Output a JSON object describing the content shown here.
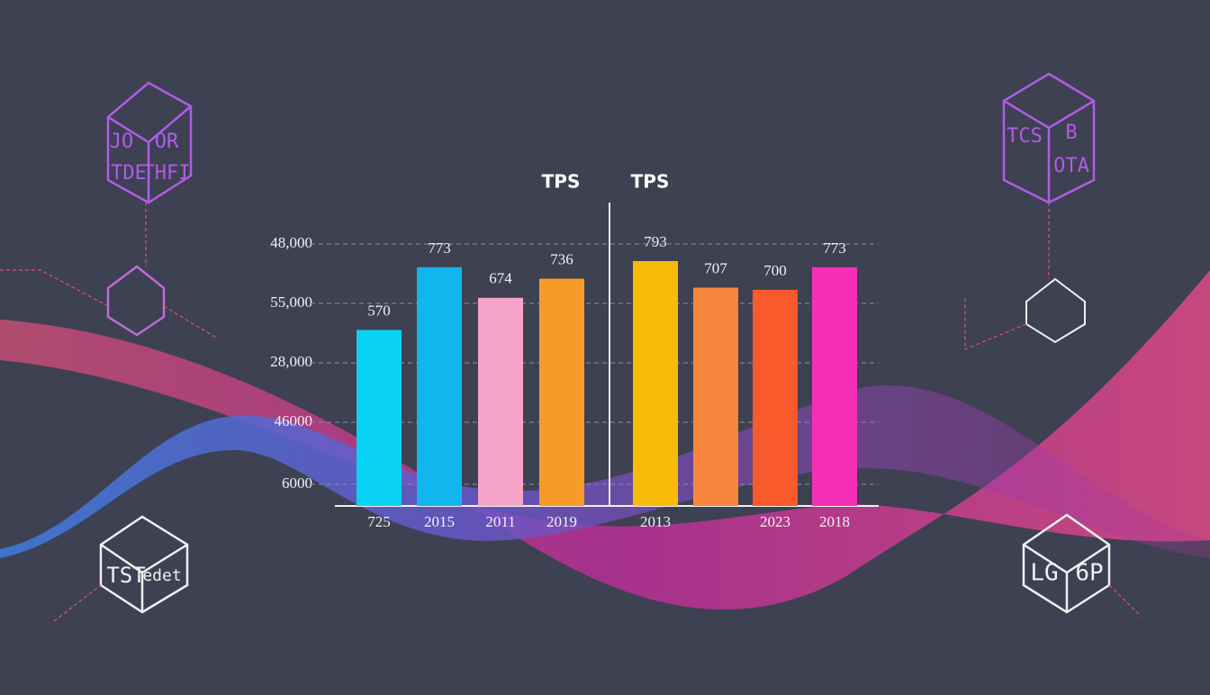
{
  "chart_data": [
    {
      "type": "bar",
      "title": "TPS",
      "y_axis_labels": [
        "48,000",
        "55,000",
        "28,000",
        "46000",
        "6000"
      ],
      "categories": [
        "725",
        "2015",
        "2011",
        "2019"
      ],
      "values": [
        570,
        773,
        674,
        736
      ],
      "colors": [
        "#0ad2f4",
        "#12b6ee",
        "#f6a4c9",
        "#f89a28"
      ]
    },
    {
      "type": "bar",
      "title": "TPS",
      "categories": [
        "2013",
        null,
        "2023",
        "2018"
      ],
      "values": [
        793,
        707,
        700,
        773
      ],
      "colors": [
        "#f8bc08",
        "#f7853c",
        "#f85a2c",
        "#f62fb8"
      ]
    }
  ],
  "decor_labels": [
    "JO",
    "OR",
    "TDE",
    "THFI",
    "TCS",
    "B",
    "OTA",
    "TST",
    "edet",
    "LG",
    "6P"
  ]
}
